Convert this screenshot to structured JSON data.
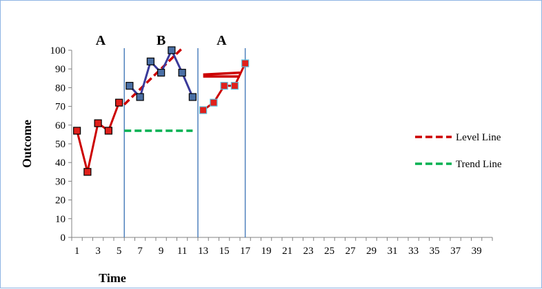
{
  "chart_data": {
    "type": "line",
    "title": "",
    "xlabel": "Time",
    "ylabel": "Outcome",
    "xlim": [
      1,
      40
    ],
    "ylim": [
      0,
      100
    ],
    "y_ticks": [
      0,
      10,
      20,
      30,
      40,
      50,
      60,
      70,
      80,
      90,
      100
    ],
    "x_ticks": [
      1,
      3,
      5,
      7,
      9,
      11,
      13,
      15,
      17,
      19,
      21,
      23,
      25,
      27,
      29,
      31,
      33,
      35,
      37,
      39
    ],
    "grid": false,
    "legend_position": "right",
    "phases": [
      {
        "label": "A",
        "start": 1,
        "end": 5.5
      },
      {
        "label": "B",
        "start": 5.5,
        "end": 12.5
      },
      {
        "label": "A",
        "start": 12.5,
        "end": 17
      }
    ],
    "phase_dividers": [
      5.5,
      12.5,
      17
    ],
    "series": [
      {
        "color": "#cc0000",
        "marker_fill": "#e0201b",
        "marker_stroke": "#000000",
        "points": [
          [
            1,
            57
          ],
          [
            2,
            35
          ],
          [
            3,
            61
          ],
          [
            4,
            57
          ],
          [
            5,
            72
          ]
        ]
      },
      {
        "color": "#3a3a9a",
        "marker_fill": "#4a6fa5",
        "marker_stroke": "#000000",
        "points": [
          [
            6,
            81
          ],
          [
            7,
            75
          ],
          [
            8,
            94
          ],
          [
            9,
            88
          ],
          [
            10,
            100
          ],
          [
            11,
            88
          ],
          [
            12,
            75
          ]
        ]
      },
      {
        "color": "#cc0000",
        "marker_fill": "#e0201b",
        "marker_stroke": "#5bc0de",
        "points": [
          [
            13,
            68
          ],
          [
            14,
            72
          ],
          [
            15,
            81
          ],
          [
            16,
            81
          ],
          [
            17,
            93
          ]
        ]
      }
    ],
    "reference_lines": [
      {
        "legend": "Level Line",
        "color": "#cc0000",
        "style": "dashed",
        "points": [
          [
            5.5,
            71
          ],
          [
            11,
            101
          ]
        ]
      },
      {
        "legend": "Trend Line",
        "color": "#00b050",
        "style": "dashed",
        "points": [
          [
            5.5,
            57
          ],
          [
            12,
            57
          ]
        ]
      },
      {
        "color": "#cc0000",
        "style": "solid",
        "points": [
          [
            13,
            87
          ],
          [
            16.5,
            88
          ]
        ]
      },
      {
        "color": "#cc0000",
        "style": "solid",
        "points": [
          [
            13,
            86
          ],
          [
            16.5,
            86
          ]
        ]
      }
    ],
    "legend": [
      {
        "label": "Level Line",
        "color": "#cc0000"
      },
      {
        "label": "Trend Line",
        "color": "#00b050"
      }
    ]
  }
}
